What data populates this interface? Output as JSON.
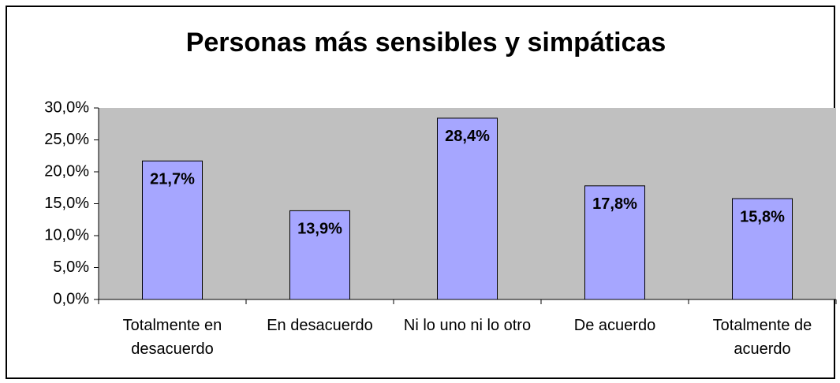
{
  "chart_data": {
    "type": "bar",
    "title": "Personas más sensibles y simpáticas",
    "categories": [
      "Totalmente en desacuerdo",
      "En desacuerdo",
      "Ni lo uno ni lo otro",
      "De acuerdo",
      "Totalmente de acuerdo"
    ],
    "values": [
      21.7,
      13.9,
      28.4,
      17.8,
      15.8
    ],
    "value_labels": [
      "21,7%",
      "13,9%",
      "28,4%",
      "17,8%",
      "15,8%"
    ],
    "color": "#a6a6ff",
    "ylim": [
      0,
      30
    ],
    "yticks": [
      {
        "value": 0,
        "label": "0,0%"
      },
      {
        "value": 5,
        "label": "5,0%"
      },
      {
        "value": 10,
        "label": "10,0%"
      },
      {
        "value": 15,
        "label": "15,0%"
      },
      {
        "value": 20,
        "label": "20,0%"
      },
      {
        "value": 25,
        "label": "25,0%"
      },
      {
        "value": 30,
        "label": "30,0%"
      }
    ]
  }
}
